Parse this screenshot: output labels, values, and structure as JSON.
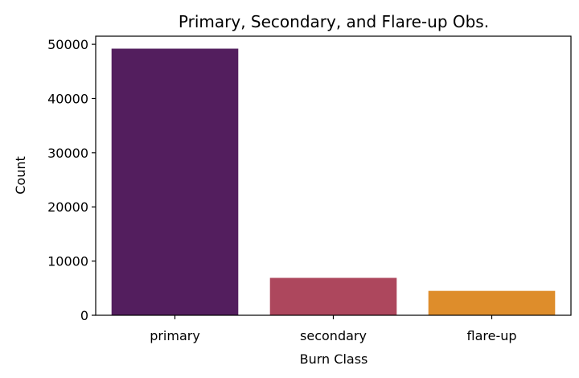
{
  "chart_data": {
    "type": "bar",
    "title": "Primary, Secondary, and Flare-up Obs.",
    "xlabel": "Burn Class",
    "ylabel": "Count",
    "categories": [
      "primary",
      "secondary",
      "flare-up"
    ],
    "values": [
      49200,
      6900,
      4500
    ],
    "colors": [
      "#531e5e",
      "#ad475d",
      "#de8d2b"
    ],
    "ylim": [
      0,
      51500
    ],
    "yticks": [
      0,
      10000,
      20000,
      30000,
      40000,
      50000
    ],
    "grid": false,
    "legend": "none"
  }
}
